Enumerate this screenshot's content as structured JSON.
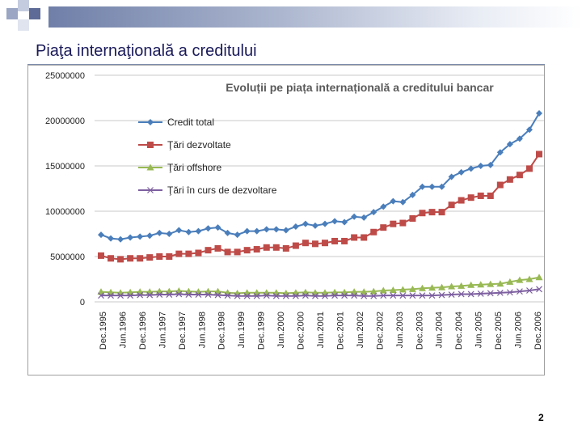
{
  "slide": {
    "title": "Piaţa internaţională a creditului",
    "page_number": "2"
  },
  "chart_data": {
    "type": "line",
    "title": "Evoluții pe piața internațională a creditului bancar",
    "xlabel": "",
    "ylabel": "",
    "ylim": [
      0,
      25000000
    ],
    "yticks": [
      "0",
      "5000000",
      "10000000",
      "15000000",
      "20000000",
      "25000000"
    ],
    "grid": true,
    "legend_position": "top-left",
    "x_ticks": [
      "Dec.1995",
      "Jun.1996",
      "Dec.1996",
      "Jun.1997",
      "Dec.1997",
      "Jun.1998",
      "Dec.1998",
      "Jun.1999",
      "Dec.1999",
      "Jun.2000",
      "Dec.2000",
      "Jun.2001",
      "Dec.2001",
      "Jun.2002",
      "Dec.2002",
      "Jun.2003",
      "Dec.2003",
      "Jun.2004",
      "Dec.2004",
      "Jun.2005",
      "Dec.2005",
      "Jun.2006",
      "Dec.2006"
    ],
    "series": [
      {
        "name": "Credit total",
        "color": "#4a7ebb",
        "marker": "diamond",
        "values": [
          7400000,
          7000000,
          6900000,
          7100000,
          7200000,
          7300000,
          7600000,
          7500000,
          7900000,
          7700000,
          7800000,
          8100000,
          8200000,
          7600000,
          7400000,
          7800000,
          7800000,
          8000000,
          8000000,
          7900000,
          8300000,
          8600000,
          8400000,
          8600000,
          8900000,
          8800000,
          9400000,
          9300000,
          9900000,
          10500000,
          11100000,
          11000000,
          11800000,
          12700000,
          12700000,
          12700000,
          13800000,
          14300000,
          14700000,
          15000000,
          15100000,
          16500000,
          17400000,
          18000000,
          19000000,
          20800000
        ]
      },
      {
        "name": "Ţări dezvoltate",
        "color": "#be4b48",
        "marker": "square",
        "values": [
          5100000,
          4800000,
          4700000,
          4800000,
          4800000,
          4900000,
          5000000,
          5000000,
          5300000,
          5300000,
          5400000,
          5700000,
          5900000,
          5500000,
          5500000,
          5700000,
          5800000,
          6000000,
          6000000,
          5900000,
          6200000,
          6500000,
          6400000,
          6500000,
          6700000,
          6700000,
          7100000,
          7100000,
          7700000,
          8200000,
          8600000,
          8700000,
          9200000,
          9800000,
          9900000,
          9900000,
          10700000,
          11200000,
          11500000,
          11700000,
          11700000,
          12900000,
          13500000,
          14000000,
          14700000,
          16300000
        ]
      },
      {
        "name": "Ţări offshore",
        "color": "#98b954",
        "marker": "triangle",
        "values": [
          1100000,
          1050000,
          1000000,
          1050000,
          1100000,
          1100000,
          1150000,
          1150000,
          1200000,
          1150000,
          1100000,
          1150000,
          1150000,
          1000000,
          950000,
          1000000,
          1000000,
          1000000,
          1000000,
          950000,
          1000000,
          1050000,
          1000000,
          1000000,
          1050000,
          1050000,
          1100000,
          1100000,
          1150000,
          1250000,
          1300000,
          1350000,
          1400000,
          1500000,
          1550000,
          1600000,
          1700000,
          1750000,
          1850000,
          1900000,
          1950000,
          2000000,
          2200000,
          2400000,
          2500000,
          2700000
        ]
      },
      {
        "name": "Ţări în curs de dezvoltare",
        "color": "#7d5fa0",
        "marker": "x",
        "values": [
          700000,
          700000,
          700000,
          700000,
          750000,
          750000,
          800000,
          800000,
          850000,
          800000,
          800000,
          800000,
          750000,
          700000,
          650000,
          650000,
          650000,
          700000,
          650000,
          650000,
          650000,
          700000,
          650000,
          650000,
          700000,
          700000,
          700000,
          650000,
          650000,
          700000,
          700000,
          700000,
          700000,
          700000,
          700000,
          750000,
          800000,
          850000,
          850000,
          900000,
          950000,
          1000000,
          1050000,
          1150000,
          1250000,
          1400000
        ]
      }
    ]
  }
}
